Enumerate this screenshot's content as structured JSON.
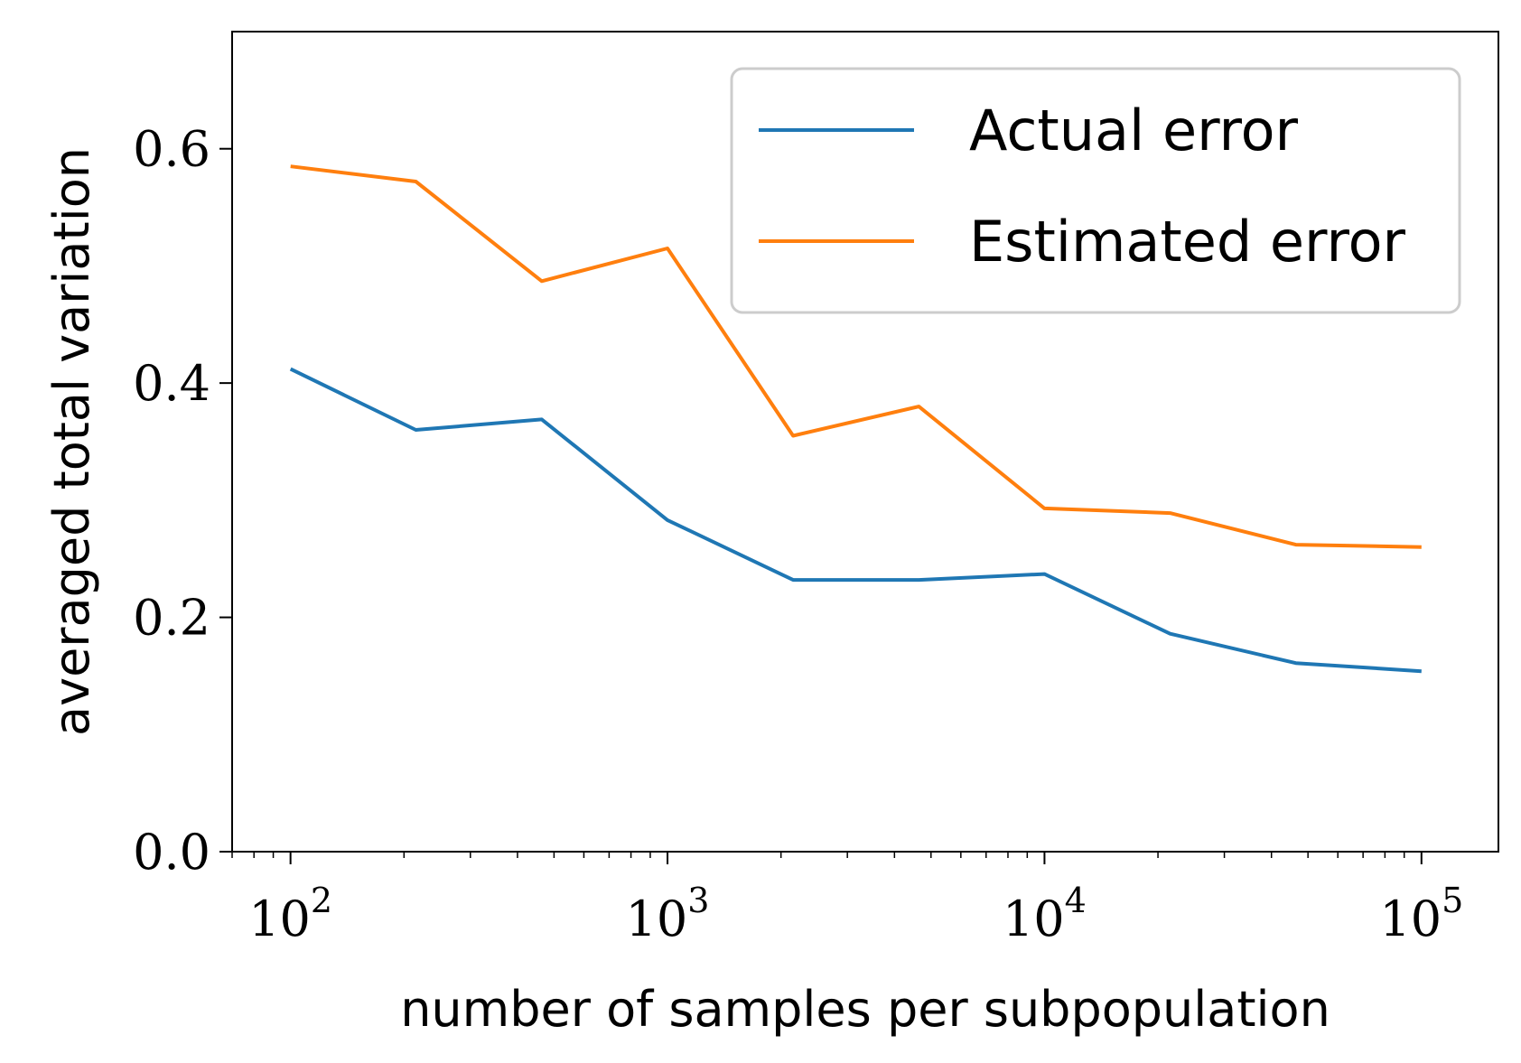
{
  "chart_data": {
    "type": "line",
    "xscale": "log",
    "xlim": [
      70,
      160000
    ],
    "ylim": [
      0.0,
      0.7
    ],
    "xlabel": "number of samples per subpopulation",
    "ylabel": "averaged total variation",
    "legend_placement": "top-right",
    "x": [
      100,
      215,
      464,
      1000,
      2154,
      4642,
      10000,
      21544,
      46416,
      100000
    ],
    "series": [
      {
        "name": "Actual error",
        "color": "#1f77b4",
        "values": [
          0.412,
          0.36,
          0.369,
          0.283,
          0.232,
          0.232,
          0.237,
          0.186,
          0.161,
          0.154
        ]
      },
      {
        "name": "Estimated error",
        "color": "#ff7f0e",
        "values": [
          0.585,
          0.572,
          0.487,
          0.515,
          0.355,
          0.38,
          0.293,
          0.289,
          0.262,
          0.26
        ]
      }
    ],
    "x_ticks": [
      {
        "base": "10",
        "exp": "2",
        "value": 100
      },
      {
        "base": "10",
        "exp": "3",
        "value": 1000
      },
      {
        "base": "10",
        "exp": "4",
        "value": 10000
      },
      {
        "base": "10",
        "exp": "5",
        "value": 100000
      }
    ],
    "y_ticks": [
      {
        "label": "0.0",
        "value": 0.0
      },
      {
        "label": "0.2",
        "value": 0.2
      },
      {
        "label": "0.4",
        "value": 0.4
      },
      {
        "label": "0.6",
        "value": 0.6
      }
    ]
  }
}
